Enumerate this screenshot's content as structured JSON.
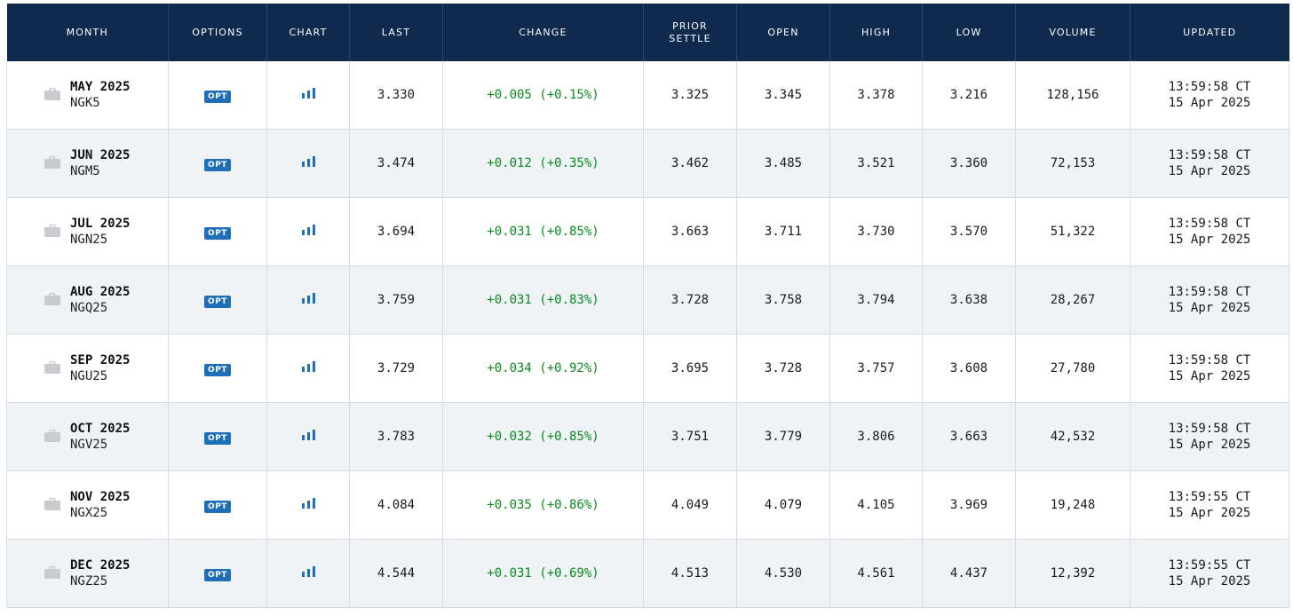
{
  "header": {
    "month": "MONTH",
    "options": "OPTIONS",
    "chart": "CHART",
    "last": "LAST",
    "change": "CHANGE",
    "prior_settle_1": "PRIOR",
    "prior_settle_2": "SETTLE",
    "open": "OPEN",
    "high": "HIGH",
    "low": "LOW",
    "volume": "VOLUME",
    "updated": "UPDATED"
  },
  "colors": {
    "header_bg": "#0f2a4d",
    "positive_change": "#0b8a1e",
    "opt_badge": "#1e6fb8",
    "alt_row": "#eff3f6"
  },
  "icons": {
    "month": "briefcase-icon",
    "chart": "bar-chart-icon"
  },
  "rows": [
    {
      "month": "MAY 2025",
      "code": "NGK5",
      "opt": "OPT",
      "last": "3.330",
      "change": "+0.005 (+0.15%)",
      "prior_settle": "3.325",
      "open": "3.345",
      "high": "3.378",
      "low": "3.216",
      "volume": "128,156",
      "updated_time": "13:59:58 CT",
      "updated_date": "15 Apr 2025"
    },
    {
      "month": "JUN 2025",
      "code": "NGM5",
      "opt": "OPT",
      "last": "3.474",
      "change": "+0.012 (+0.35%)",
      "prior_settle": "3.462",
      "open": "3.485",
      "high": "3.521",
      "low": "3.360",
      "volume": "72,153",
      "updated_time": "13:59:58 CT",
      "updated_date": "15 Apr 2025"
    },
    {
      "month": "JUL 2025",
      "code": "NGN25",
      "opt": "OPT",
      "last": "3.694",
      "change": "+0.031 (+0.85%)",
      "prior_settle": "3.663",
      "open": "3.711",
      "high": "3.730",
      "low": "3.570",
      "volume": "51,322",
      "updated_time": "13:59:58 CT",
      "updated_date": "15 Apr 2025"
    },
    {
      "month": "AUG 2025",
      "code": "NGQ25",
      "opt": "OPT",
      "last": "3.759",
      "change": "+0.031 (+0.83%)",
      "prior_settle": "3.728",
      "open": "3.758",
      "high": "3.794",
      "low": "3.638",
      "volume": "28,267",
      "updated_time": "13:59:58 CT",
      "updated_date": "15 Apr 2025"
    },
    {
      "month": "SEP 2025",
      "code": "NGU25",
      "opt": "OPT",
      "last": "3.729",
      "change": "+0.034 (+0.92%)",
      "prior_settle": "3.695",
      "open": "3.728",
      "high": "3.757",
      "low": "3.608",
      "volume": "27,780",
      "updated_time": "13:59:58 CT",
      "updated_date": "15 Apr 2025"
    },
    {
      "month": "OCT 2025",
      "code": "NGV25",
      "opt": "OPT",
      "last": "3.783",
      "change": "+0.032 (+0.85%)",
      "prior_settle": "3.751",
      "open": "3.779",
      "high": "3.806",
      "low": "3.663",
      "volume": "42,532",
      "updated_time": "13:59:58 CT",
      "updated_date": "15 Apr 2025"
    },
    {
      "month": "NOV 2025",
      "code": "NGX25",
      "opt": "OPT",
      "last": "4.084",
      "change": "+0.035 (+0.86%)",
      "prior_settle": "4.049",
      "open": "4.079",
      "high": "4.105",
      "low": "3.969",
      "volume": "19,248",
      "updated_time": "13:59:55 CT",
      "updated_date": "15 Apr 2025"
    },
    {
      "month": "DEC 2025",
      "code": "NGZ25",
      "opt": "OPT",
      "last": "4.544",
      "change": "+0.031 (+0.69%)",
      "prior_settle": "4.513",
      "open": "4.530",
      "high": "4.561",
      "low": "4.437",
      "volume": "12,392",
      "updated_time": "13:59:55 CT",
      "updated_date": "15 Apr 2025"
    }
  ]
}
